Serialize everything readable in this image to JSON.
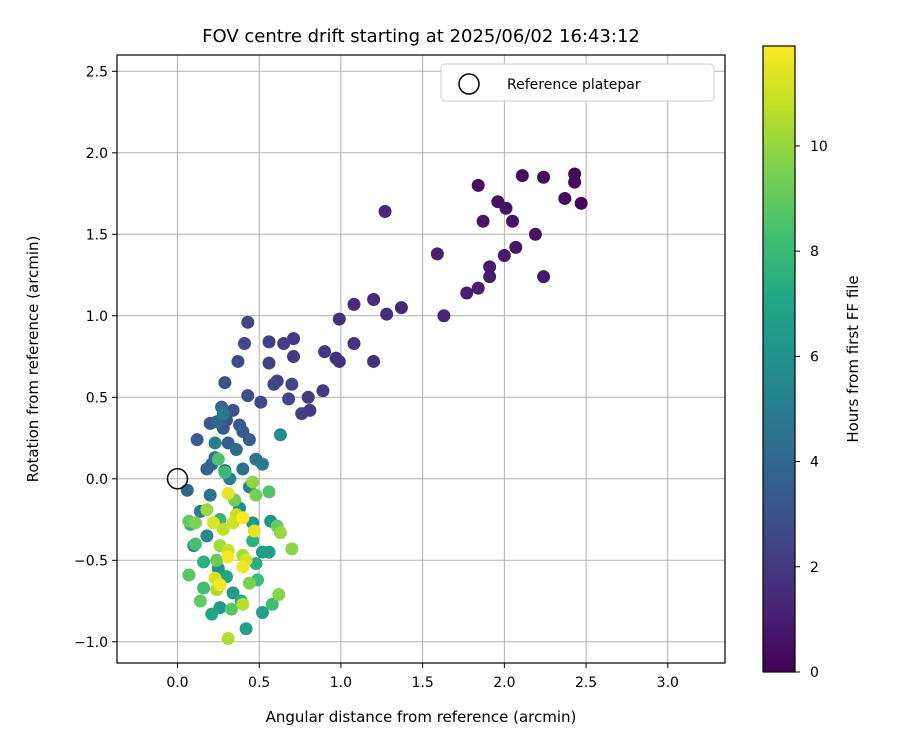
{
  "chart_data": {
    "type": "scatter",
    "title": "FOV centre drift starting at 2025/06/02 16:43:12",
    "xlabel": "Angular distance from reference (arcmin)",
    "ylabel": "Rotation from reference (arcmin)",
    "xlim": [
      -0.37,
      3.35
    ],
    "ylim": [
      -1.13,
      2.6
    ],
    "xticks": [
      0.0,
      0.5,
      1.0,
      1.5,
      2.0,
      2.5,
      3.0
    ],
    "yticks": [
      -1.0,
      -0.5,
      0.0,
      0.5,
      1.0,
      1.5,
      2.0,
      2.5
    ],
    "xtick_labels": [
      "0.0",
      "0.5",
      "1.0",
      "1.5",
      "2.0",
      "2.5",
      "3.0"
    ],
    "ytick_labels": [
      "−1.0",
      "−0.5",
      "0.0",
      "0.5",
      "1.0",
      "1.5",
      "2.0",
      "2.5"
    ],
    "grid": true,
    "legend": {
      "position": "top-right",
      "entries": [
        "Reference platepar"
      ]
    },
    "reference_point": {
      "x": 0.0,
      "y": 0.0,
      "label": "Reference platepar"
    },
    "colorbar": {
      "label": "Hours from first FF file",
      "range": [
        0,
        11.9
      ],
      "ticks": [
        0,
        2,
        4,
        6,
        8,
        10
      ],
      "tick_labels": [
        "0",
        "2",
        "4",
        "6",
        "8",
        "10"
      ],
      "colormap": "viridis"
    },
    "points": [
      [
        2.43,
        1.87,
        0.2
      ],
      [
        2.43,
        1.82,
        0.3
      ],
      [
        2.47,
        1.69,
        0.2
      ],
      [
        2.37,
        1.72,
        0.3
      ],
      [
        2.24,
        1.85,
        0.3
      ],
      [
        2.11,
        1.86,
        0.4
      ],
      [
        1.84,
        1.8,
        0.5
      ],
      [
        1.96,
        1.7,
        0.5
      ],
      [
        2.01,
        1.66,
        0.6
      ],
      [
        2.05,
        1.58,
        0.6
      ],
      [
        1.87,
        1.58,
        0.7
      ],
      [
        2.19,
        1.5,
        0.6
      ],
      [
        2.07,
        1.42,
        0.7
      ],
      [
        2.0,
        1.37,
        0.8
      ],
      [
        1.91,
        1.3,
        0.8
      ],
      [
        1.91,
        1.24,
        0.9
      ],
      [
        2.24,
        1.24,
        0.7
      ],
      [
        1.84,
        1.17,
        1.0
      ],
      [
        1.77,
        1.14,
        1.0
      ],
      [
        1.59,
        1.38,
        1.1
      ],
      [
        1.63,
        1.0,
        1.2
      ],
      [
        1.27,
        1.64,
        1.3
      ],
      [
        1.37,
        1.05,
        1.3
      ],
      [
        1.28,
        1.01,
        1.4
      ],
      [
        1.2,
        1.1,
        1.5
      ],
      [
        1.08,
        1.07,
        1.5
      ],
      [
        0.99,
        0.98,
        1.6
      ],
      [
        1.08,
        0.83,
        1.7
      ],
      [
        0.99,
        0.72,
        1.7
      ],
      [
        0.97,
        0.74,
        1.8
      ],
      [
        0.9,
        0.78,
        1.9
      ],
      [
        1.2,
        0.72,
        1.7
      ],
      [
        0.89,
        0.54,
        2.0
      ],
      [
        0.8,
        0.5,
        2.0
      ],
      [
        0.81,
        0.42,
        2.1
      ],
      [
        0.76,
        0.4,
        2.2
      ],
      [
        0.71,
        0.86,
        2.0
      ],
      [
        0.71,
        0.75,
        2.1
      ],
      [
        0.65,
        0.83,
        2.2
      ],
      [
        0.56,
        0.84,
        2.3
      ],
      [
        0.43,
        0.96,
        2.4
      ],
      [
        0.56,
        0.71,
        2.3
      ],
      [
        0.61,
        0.6,
        2.4
      ],
      [
        0.59,
        0.58,
        2.5
      ],
      [
        0.7,
        0.58,
        2.4
      ],
      [
        0.68,
        0.49,
        2.5
      ],
      [
        0.51,
        0.47,
        2.6
      ],
      [
        0.41,
        0.83,
        2.6
      ],
      [
        0.37,
        0.72,
        2.7
      ],
      [
        0.43,
        0.51,
        2.8
      ],
      [
        0.29,
        0.59,
        2.9
      ],
      [
        0.34,
        0.42,
        3.0
      ],
      [
        0.3,
        0.36,
        3.1
      ],
      [
        0.2,
        0.34,
        3.2
      ],
      [
        0.28,
        0.31,
        3.3
      ],
      [
        0.38,
        0.33,
        3.3
      ],
      [
        0.4,
        0.29,
        3.4
      ],
      [
        0.12,
        0.24,
        3.5
      ],
      [
        0.44,
        0.24,
        3.5
      ],
      [
        0.31,
        0.22,
        3.6
      ],
      [
        0.21,
        0.09,
        3.7
      ],
      [
        0.18,
        0.06,
        3.8
      ],
      [
        0.06,
        -0.07,
        3.9
      ],
      [
        0.27,
        0.44,
        3.9
      ],
      [
        0.24,
        0.35,
        4.0
      ],
      [
        0.36,
        0.18,
        4.1
      ],
      [
        0.23,
        0.13,
        4.2
      ],
      [
        0.29,
        0.05,
        4.3
      ],
      [
        0.4,
        0.06,
        4.4
      ],
      [
        0.2,
        -0.1,
        4.5
      ],
      [
        0.48,
        0.12,
        4.6
      ],
      [
        0.52,
        0.09,
        4.7
      ],
      [
        0.28,
        0.4,
        4.8
      ],
      [
        0.14,
        -0.2,
        5.0
      ],
      [
        0.23,
        0.22,
        5.2
      ],
      [
        0.32,
        0.0,
        5.3
      ],
      [
        0.44,
        -0.05,
        5.4
      ],
      [
        0.18,
        -0.35,
        5.5
      ],
      [
        0.63,
        0.27,
        5.6
      ],
      [
        0.38,
        -0.18,
        5.8
      ],
      [
        0.1,
        -0.41,
        5.9
      ],
      [
        0.25,
        -0.55,
        6.0
      ],
      [
        0.57,
        -0.26,
        6.1
      ],
      [
        0.46,
        -0.27,
        6.2
      ],
      [
        0.26,
        -0.79,
        6.3
      ],
      [
        0.34,
        -0.7,
        6.4
      ],
      [
        0.52,
        -0.45,
        6.5
      ],
      [
        0.56,
        -0.45,
        6.6
      ],
      [
        0.42,
        -0.92,
        6.8
      ],
      [
        0.52,
        -0.82,
        6.9
      ],
      [
        0.3,
        -0.6,
        7.0
      ],
      [
        0.21,
        -0.83,
        7.1
      ],
      [
        0.39,
        -0.75,
        7.3
      ],
      [
        0.48,
        -0.52,
        7.4
      ],
      [
        0.16,
        -0.51,
        7.5
      ],
      [
        0.46,
        -0.38,
        7.6
      ],
      [
        0.08,
        -0.28,
        7.7
      ],
      [
        0.26,
        -0.25,
        7.8
      ],
      [
        0.29,
        0.04,
        8.0
      ],
      [
        0.49,
        -0.62,
        8.1
      ],
      [
        0.58,
        -0.77,
        8.2
      ],
      [
        0.16,
        -0.67,
        8.3
      ],
      [
        0.11,
        -0.4,
        8.4
      ],
      [
        0.25,
        0.12,
        8.5
      ],
      [
        0.56,
        -0.08,
        8.6
      ],
      [
        0.33,
        -0.8,
        8.7
      ],
      [
        0.07,
        -0.59,
        8.8
      ],
      [
        0.07,
        -0.26,
        8.9
      ],
      [
        0.14,
        -0.75,
        9.0
      ],
      [
        0.61,
        -0.29,
        9.1
      ],
      [
        0.24,
        -0.5,
        9.2
      ],
      [
        0.35,
        -0.13,
        9.3
      ],
      [
        0.48,
        -0.1,
        9.4
      ],
      [
        0.44,
        -0.64,
        9.5
      ],
      [
        0.11,
        -0.27,
        9.6
      ],
      [
        0.62,
        -0.71,
        9.7
      ],
      [
        0.7,
        -0.43,
        9.8
      ],
      [
        0.46,
        -0.02,
        9.9
      ],
      [
        0.63,
        -0.33,
        10.0
      ],
      [
        0.18,
        -0.19,
        10.1
      ],
      [
        0.26,
        -0.41,
        10.2
      ],
      [
        0.4,
        -0.47,
        10.3
      ],
      [
        0.24,
        -0.68,
        10.4
      ],
      [
        0.31,
        -0.98,
        10.5
      ],
      [
        0.4,
        -0.77,
        10.6
      ],
      [
        0.28,
        -0.31,
        10.7
      ],
      [
        0.36,
        -0.22,
        10.8
      ],
      [
        0.31,
        -0.44,
        10.9
      ],
      [
        0.34,
        -0.27,
        11.0
      ],
      [
        0.23,
        -0.61,
        11.1
      ],
      [
        0.42,
        -0.5,
        11.2
      ],
      [
        0.22,
        -0.27,
        11.3
      ],
      [
        0.47,
        -0.32,
        11.4
      ],
      [
        0.31,
        -0.09,
        11.5
      ],
      [
        0.4,
        -0.54,
        11.6
      ],
      [
        0.26,
        -0.65,
        11.7
      ],
      [
        0.31,
        -0.48,
        11.8
      ],
      [
        0.4,
        -0.24,
        11.9
      ]
    ]
  }
}
